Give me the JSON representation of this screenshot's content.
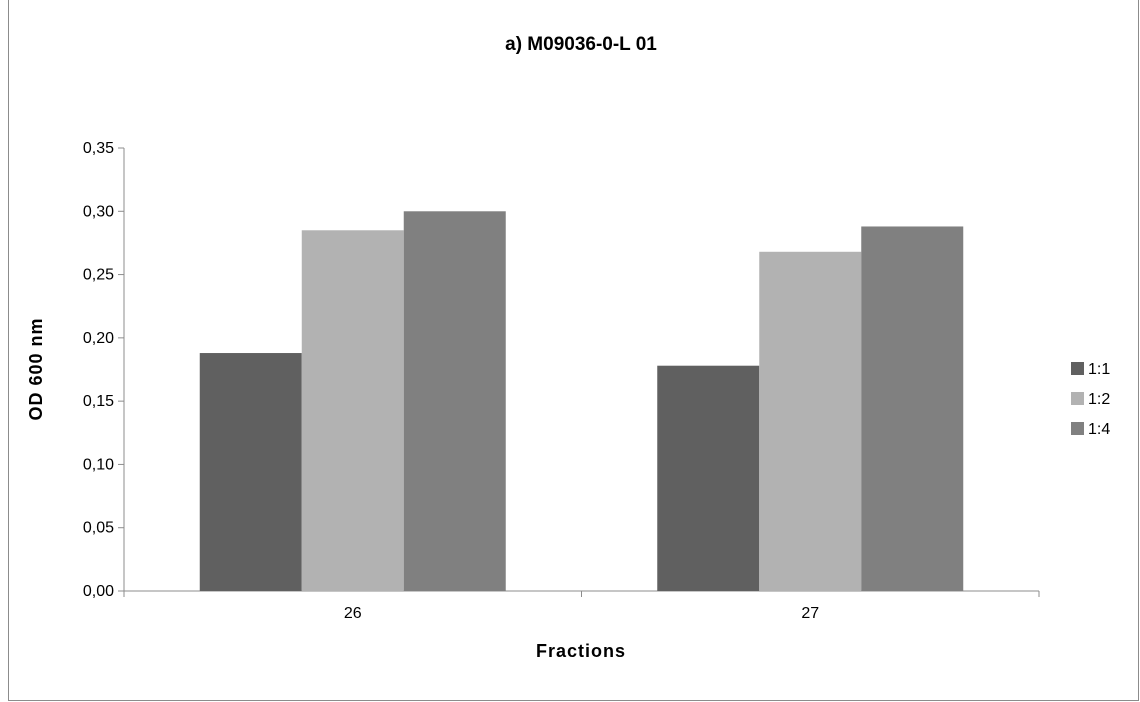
{
  "chart_data": {
    "type": "bar",
    "title": "a) M09036-0-L 01",
    "xlabel": "Fractions",
    "ylabel": "OD 600 nm",
    "categories": [
      "26",
      "27"
    ],
    "series": [
      {
        "name": "1:1",
        "color": "#606060",
        "values": [
          0.188,
          0.178
        ]
      },
      {
        "name": "1:2",
        "color": "#b2b2b2",
        "values": [
          0.285,
          0.268
        ]
      },
      {
        "name": "1:4",
        "color": "#808080",
        "values": [
          0.3,
          0.288
        ]
      }
    ],
    "ylim": [
      0,
      0.35
    ],
    "yticks": [
      "0,00",
      "0,05",
      "0,10",
      "0,15",
      "0,20",
      "0,25",
      "0,30",
      "0,35"
    ],
    "grid": false,
    "legend": "right"
  }
}
